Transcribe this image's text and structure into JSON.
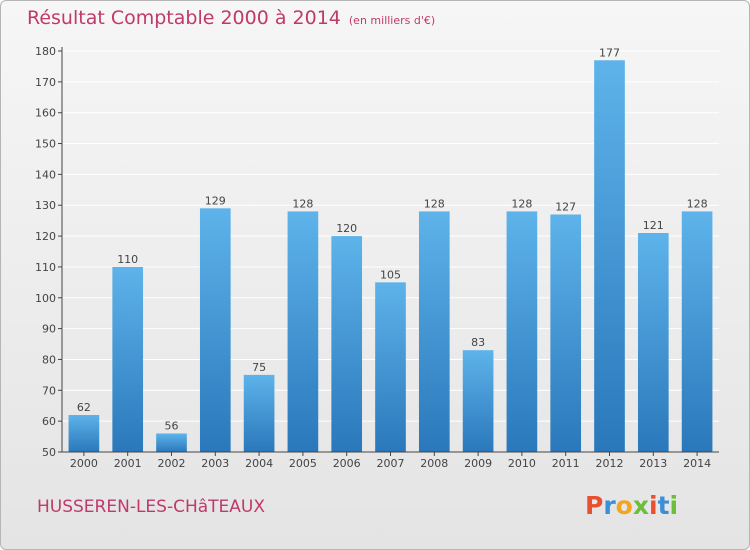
{
  "header": {
    "title": "Résultat Comptable 2000 à 2014",
    "subtitle": "(en milliers d'€)"
  },
  "footer": {
    "commune": "HUSSEREN-LES-CHâTEAUX",
    "logo_letters": [
      "P",
      "r",
      "o",
      "x",
      "i",
      "t",
      "i"
    ],
    "logo_colors": [
      "#e8502f",
      "#3a8fd6",
      "#f2a51d",
      "#6cbf3a",
      "#e8502f",
      "#3a8fd6",
      "#6cbf3a"
    ]
  },
  "colors": {
    "bar_light": "#5eb3ea",
    "bar_dark": "#2a78bb",
    "text": "#c0396b",
    "axis": "#444444",
    "grid": "#ffffff"
  },
  "chart_data": {
    "type": "bar",
    "title": "Résultat Comptable 2000 à 2014",
    "subtitle": "(en milliers d'€)",
    "categories": [
      "2000",
      "2001",
      "2002",
      "2003",
      "2004",
      "2005",
      "2006",
      "2007",
      "2008",
      "2009",
      "2010",
      "2011",
      "2012",
      "2013",
      "2014"
    ],
    "values": [
      62,
      110,
      56,
      129,
      75,
      128,
      120,
      105,
      128,
      83,
      128,
      127,
      177,
      121,
      128
    ],
    "xlabel": "",
    "ylabel": "",
    "ylim": [
      50,
      180
    ],
    "yticks": [
      50,
      60,
      70,
      80,
      90,
      100,
      110,
      120,
      130,
      140,
      150,
      160,
      170,
      180
    ],
    "grid": true,
    "legend": "none"
  }
}
